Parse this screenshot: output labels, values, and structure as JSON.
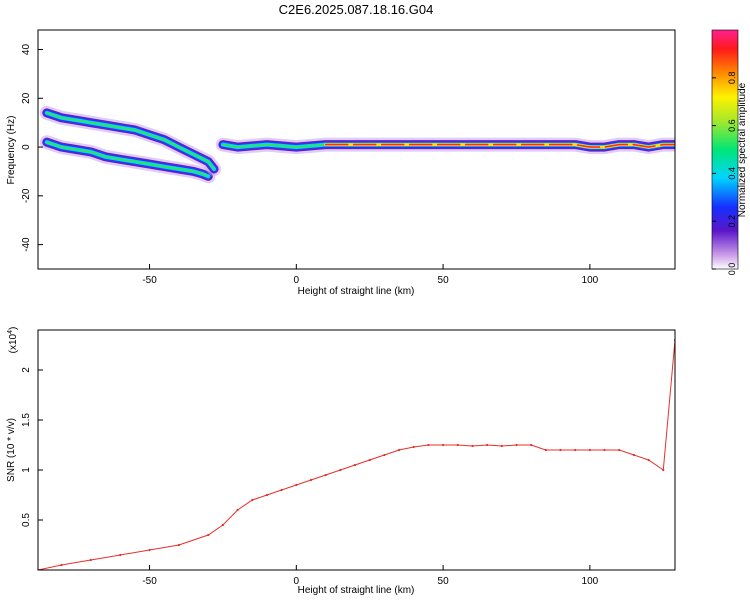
{
  "title": "C2E6.2025.087.18.16.G04",
  "chart_data": [
    {
      "type": "heatmap",
      "xlabel": "Height of straight line (km)",
      "ylabel": "Frequency (Hz)",
      "xlim": [
        -88,
        129
      ],
      "ylim": [
        -50,
        48
      ],
      "x_ticks": [
        -50,
        0,
        50,
        100
      ],
      "y_ticks": [
        -40,
        -20,
        0,
        20,
        40
      ],
      "colorbar": {
        "label": "Normalized spectral amplitude",
        "range": [
          0,
          1
        ],
        "ticks": [
          0.0,
          0.2,
          0.4,
          0.6,
          0.8
        ]
      },
      "ridges": [
        {
          "x": [
            -85,
            -80,
            -75,
            -70,
            -65,
            -60,
            -55,
            -50,
            -45,
            -40,
            -35,
            -32,
            -30
          ],
          "y": [
            2,
            0,
            -1,
            -2,
            -4,
            -5,
            -6,
            -7,
            -8,
            -9,
            -10,
            -11,
            -12
          ]
        },
        {
          "x": [
            -85,
            -80,
            -75,
            -70,
            -65,
            -60,
            -55,
            -50,
            -45,
            -40,
            -35,
            -30,
            -28
          ],
          "y": [
            14,
            12,
            11,
            10,
            9,
            8,
            7,
            5,
            3,
            0,
            -3,
            -6,
            -9
          ]
        },
        {
          "x": [
            -25,
            -20,
            -10,
            0,
            10,
            20,
            30,
            40,
            50,
            60,
            70,
            80,
            90,
            95,
            100,
            105,
            110,
            115,
            120,
            125,
            129
          ],
          "y": [
            1,
            0,
            1,
            0,
            1,
            1,
            1,
            1,
            1,
            1,
            1,
            1,
            1,
            1,
            0,
            0,
            1,
            1,
            0,
            1,
            1
          ]
        }
      ]
    },
    {
      "type": "line",
      "xlabel": "Height of straight line (km)",
      "ylabel": "SNR (10 * v/v)",
      "y_multiplier": "(x10",
      "y_multiplier_exp": "4",
      "xlim": [
        -88,
        129
      ],
      "ylim": [
        0,
        2.4
      ],
      "x_ticks": [
        -50,
        0,
        50,
        100
      ],
      "y_ticks": [
        0.5,
        1.0,
        1.5,
        2.0
      ],
      "series": [
        {
          "x": [
            -88,
            -80,
            -70,
            -60,
            -50,
            -40,
            -30,
            -25,
            -20,
            -15,
            -10,
            -5,
            0,
            5,
            10,
            15,
            20,
            25,
            30,
            35,
            40,
            45,
            50,
            55,
            60,
            65,
            70,
            75,
            80,
            85,
            90,
            95,
            100,
            105,
            110,
            115,
            120,
            125,
            129
          ],
          "y": [
            0.0,
            0.05,
            0.1,
            0.15,
            0.2,
            0.25,
            0.35,
            0.45,
            0.6,
            0.7,
            0.75,
            0.8,
            0.85,
            0.9,
            0.95,
            1.0,
            1.05,
            1.1,
            1.15,
            1.2,
            1.23,
            1.25,
            1.25,
            1.25,
            1.24,
            1.25,
            1.24,
            1.25,
            1.25,
            1.2,
            1.2,
            1.2,
            1.2,
            1.2,
            1.2,
            1.15,
            1.1,
            1.0,
            2.3
          ]
        }
      ]
    }
  ]
}
